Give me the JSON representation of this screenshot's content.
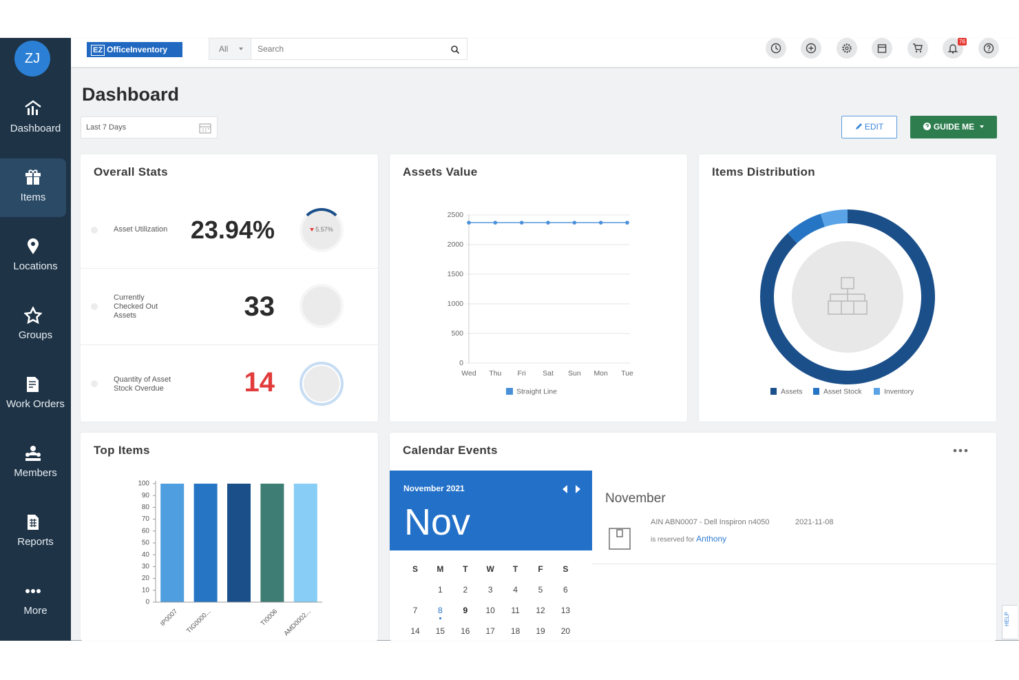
{
  "sidebar": {
    "avatar": "ZJ",
    "nav": [
      {
        "label": "Dashboard"
      },
      {
        "label": "Items"
      },
      {
        "label": "Locations"
      },
      {
        "label": "Groups"
      },
      {
        "label": "Work Orders"
      },
      {
        "label": "Members"
      },
      {
        "label": "Reports"
      },
      {
        "label": "More"
      }
    ]
  },
  "header": {
    "logo_badge": "EZ",
    "logo_text": "OfficeInventory",
    "search_scope": "All",
    "search_placeholder": "Search",
    "notification_count": "76"
  },
  "page": {
    "title": "Dashboard",
    "date_range": "Last 7 Days",
    "edit": "EDIT",
    "guide": "GUIDE ME",
    "help": "HELP"
  },
  "overall_stats": {
    "title": "Overall Stats",
    "rows": [
      {
        "label": "Asset Utilization",
        "value": "23.94%",
        "change": "5.57%"
      },
      {
        "label": "Currently Checked Out Assets",
        "value": "33"
      },
      {
        "label": "Quantity of Asset Stock Overdue",
        "value": "14"
      }
    ]
  },
  "chart_data": [
    {
      "type": "line",
      "title": "Assets Value",
      "categories": [
        "Wed",
        "Thu",
        "Fri",
        "Sat",
        "Sun",
        "Mon",
        "Tue"
      ],
      "series": [
        {
          "name": "Straight Line",
          "color": "#4a90d9",
          "values": [
            2370,
            2370,
            2370,
            2370,
            2370,
            2370,
            2370
          ]
        }
      ],
      "ylim": [
        0,
        2500
      ],
      "yticks": [
        0,
        500,
        1000,
        1500,
        2000,
        2500
      ],
      "grid": true
    },
    {
      "type": "donut",
      "title": "Items Distribution",
      "labels": [
        "Assets",
        "Asset Stock",
        "Inventory"
      ],
      "values": [
        88,
        7,
        5
      ],
      "colors": [
        "#1b4f8a",
        "#2575c4",
        "#5aa3e6"
      ]
    },
    {
      "type": "bar",
      "title": "Top Items",
      "categories": [
        "IP0007",
        "TIG0000...",
        null,
        "TI0006",
        "AMD0002..."
      ],
      "values": [
        100,
        100,
        100,
        100,
        100
      ],
      "colors": [
        "#4f9fe0",
        "#2575c4",
        "#1b4f8a",
        "#3e7d73",
        "#87cdf5"
      ],
      "ylim": [
        0,
        100
      ],
      "yticks": [
        0,
        10,
        20,
        30,
        40,
        50,
        60,
        70,
        80,
        90,
        100
      ]
    }
  ],
  "calendar": {
    "title": "Calendar Events",
    "month_year": "November 2021",
    "month_short": "Nov",
    "weekdays": [
      "S",
      "M",
      "T",
      "W",
      "T",
      "F",
      "S"
    ],
    "weeks": [
      [
        null,
        1,
        2,
        3,
        4,
        5,
        6
      ],
      [
        7,
        8,
        9,
        10,
        11,
        12,
        13
      ],
      [
        14,
        15,
        16,
        17,
        18,
        19,
        20
      ]
    ],
    "event_month": "November",
    "event": {
      "asset": "AIN ABN0007 - Dell Inspiron n4050",
      "date": "2021-11-08",
      "reserved_text": "is reserved for",
      "reserved_by": "Anthony"
    }
  }
}
